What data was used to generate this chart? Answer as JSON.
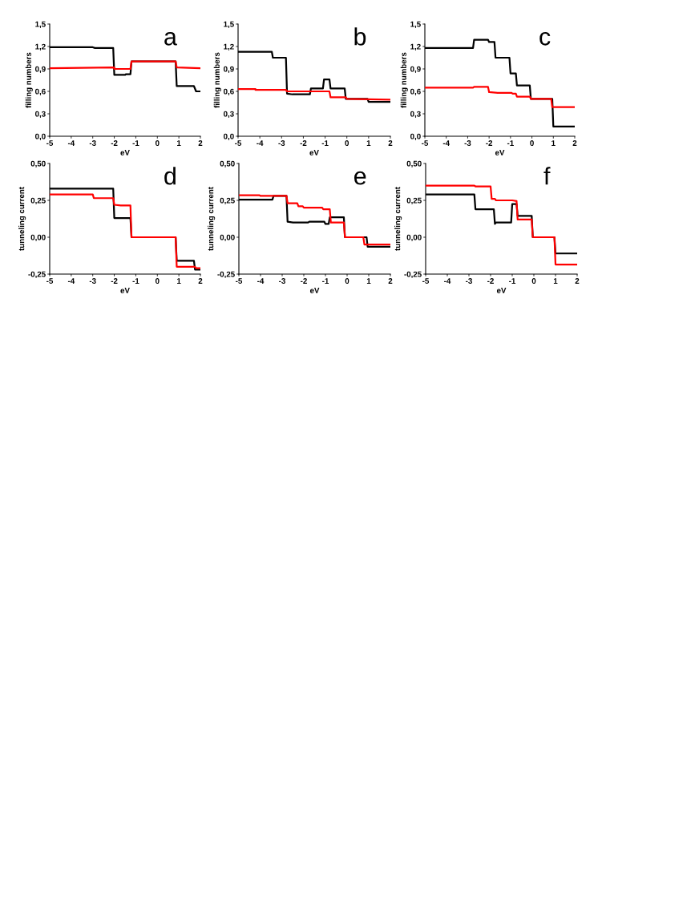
{
  "chart_data": [
    {
      "type": "line",
      "xlabel": "eV",
      "ylabel": "filling numbers",
      "annotations": [
        "a"
      ],
      "xlim": [
        -5,
        2
      ],
      "ylim": [
        0,
        1.5
      ],
      "xticks": [
        -5,
        -4,
        -3,
        -2,
        -1,
        0,
        1,
        2
      ],
      "yticks": [
        {
          "value": 0,
          "label": "0,0"
        },
        {
          "value": 0.3,
          "label": "0,3"
        },
        {
          "value": 0.6,
          "label": "0,6"
        },
        {
          "value": 0.9,
          "label": "0,9"
        },
        {
          "value": 1.2,
          "label": "1,2"
        },
        {
          "value": 1.5,
          "label": "1,5"
        }
      ],
      "series": [
        {
          "color": "#000000",
          "x": [
            -5,
            -3,
            -2.9,
            -2.05,
            -2.0,
            -1.5,
            -1.45,
            -1.25,
            -1.2,
            0.85,
            0.9,
            1.7,
            1.8,
            2
          ],
          "values": [
            1.19,
            1.19,
            1.18,
            1.18,
            0.82,
            0.82,
            0.83,
            0.83,
            1.0,
            1.0,
            0.67,
            0.67,
            0.6,
            0.6
          ]
        },
        {
          "color": "#ff0000",
          "x": [
            -5,
            -2,
            -2,
            -1.25,
            -1.2,
            0.85,
            0.9,
            2
          ],
          "values": [
            0.91,
            0.92,
            0.9,
            0.9,
            1.0,
            1.0,
            0.92,
            0.91
          ]
        }
      ]
    },
    {
      "type": "line",
      "xlabel": "eV",
      "ylabel": "filling numbers",
      "annotations": [
        "b"
      ],
      "xlim": [
        -5,
        2
      ],
      "ylim": [
        0,
        1.5
      ],
      "xticks": [
        -5,
        -4,
        -3,
        -2,
        -1,
        0,
        1,
        2
      ],
      "yticks": [
        {
          "value": 0,
          "label": "0,0"
        },
        {
          "value": 0.3,
          "label": "0,3"
        },
        {
          "value": 0.6,
          "label": "0,6"
        },
        {
          "value": 0.9,
          "label": "0,9"
        },
        {
          "value": 1.2,
          "label": "1,2"
        },
        {
          "value": 1.5,
          "label": "1,5"
        }
      ],
      "series": [
        {
          "color": "#000000",
          "x": [
            -5,
            -3.45,
            -3.4,
            -2.8,
            -2.75,
            -2.5,
            -1.7,
            -1.65,
            -1.1,
            -1.05,
            -0.8,
            -0.75,
            -0.1,
            -0.05,
            0.95,
            1.0,
            2
          ],
          "values": [
            1.13,
            1.13,
            1.05,
            1.05,
            0.57,
            0.56,
            0.56,
            0.64,
            0.64,
            0.76,
            0.76,
            0.64,
            0.64,
            0.5,
            0.5,
            0.46,
            0.46
          ]
        },
        {
          "color": "#ff0000",
          "x": [
            -5,
            -4.2,
            -4.2,
            -2.8,
            -2.75,
            -0.8,
            -0.75,
            -0.05,
            0,
            2
          ],
          "values": [
            0.63,
            0.63,
            0.62,
            0.62,
            0.6,
            0.6,
            0.52,
            0.52,
            0.5,
            0.49
          ]
        }
      ]
    },
    {
      "type": "line",
      "xlabel": "eV",
      "ylabel": "filling numbers",
      "annotations": [
        "c"
      ],
      "xlim": [
        -5,
        2
      ],
      "ylim": [
        0,
        1.5
      ],
      "xticks": [
        -5,
        -4,
        -3,
        -2,
        -1,
        0,
        1,
        2
      ],
      "yticks": [
        {
          "value": 0,
          "label": "0,0"
        },
        {
          "value": 0.3,
          "label": "0,3"
        },
        {
          "value": 0.6,
          "label": "0,6"
        },
        {
          "value": 0.9,
          "label": "0,9"
        },
        {
          "value": 1.2,
          "label": "1,2"
        },
        {
          "value": 1.5,
          "label": "1,5"
        }
      ],
      "series": [
        {
          "color": "#000000",
          "x": [
            -5,
            -2.75,
            -2.7,
            -2.05,
            -2.0,
            -1.75,
            -1.7,
            -1.05,
            -1.0,
            -0.75,
            -0.7,
            -0.1,
            -0.05,
            0.95,
            1.0,
            2
          ],
          "values": [
            1.18,
            1.18,
            1.29,
            1.29,
            1.26,
            1.26,
            1.05,
            1.05,
            0.84,
            0.84,
            0.68,
            0.68,
            0.5,
            0.5,
            0.13,
            0.13
          ]
        },
        {
          "color": "#ff0000",
          "x": [
            -5,
            -2.75,
            -2.7,
            -2.05,
            -2.0,
            -1.6,
            -0.95,
            -0.9,
            -0.75,
            -0.7,
            -0.1,
            -0.05,
            0.9,
            0.95,
            2
          ],
          "values": [
            0.65,
            0.65,
            0.66,
            0.66,
            0.59,
            0.58,
            0.58,
            0.57,
            0.57,
            0.53,
            0.53,
            0.5,
            0.5,
            0.39,
            0.39
          ]
        }
      ]
    },
    {
      "type": "line",
      "xlabel": "eV",
      "ylabel": "tunneling current",
      "annotations": [
        "d"
      ],
      "xlim": [
        -5,
        2
      ],
      "ylim": [
        -0.25,
        0.5
      ],
      "xticks": [
        -5,
        -4,
        -3,
        -2,
        -1,
        0,
        1,
        2
      ],
      "yticks": [
        {
          "value": -0.25,
          "label": "-0,25"
        },
        {
          "value": 0,
          "label": "0,00"
        },
        {
          "value": 0.25,
          "label": "0,25"
        },
        {
          "value": 0.5,
          "label": "0,50"
        }
      ],
      "series": [
        {
          "color": "#000000",
          "x": [
            -5,
            -2.05,
            -2.0,
            -1.25,
            -1.2,
            0.85,
            0.9,
            1.7,
            1.75,
            2
          ],
          "values": [
            0.33,
            0.33,
            0.13,
            0.13,
            0,
            0,
            -0.16,
            -0.16,
            -0.22,
            -0.22
          ]
        },
        {
          "color": "#ff0000",
          "x": [
            -5,
            -3.0,
            -2.95,
            -2.05,
            -2.0,
            -1.7,
            -1.25,
            -1.2,
            0.85,
            0.9,
            1.75,
            1.8,
            2
          ],
          "values": [
            0.29,
            0.29,
            0.265,
            0.265,
            0.22,
            0.215,
            0.215,
            0,
            0,
            -0.2,
            -0.2,
            -0.21,
            -0.21
          ]
        }
      ]
    },
    {
      "type": "line",
      "xlabel": "eV",
      "ylabel": "tunneling current",
      "annotations": [
        "e"
      ],
      "xlim": [
        -5,
        2
      ],
      "ylim": [
        -0.25,
        0.5
      ],
      "xticks": [
        -5,
        -4,
        -3,
        -2,
        -1,
        0,
        1,
        2
      ],
      "yticks": [
        {
          "value": -0.25,
          "label": "-0,25"
        },
        {
          "value": 0,
          "label": "0,00"
        },
        {
          "value": 0.25,
          "label": "0,25"
        },
        {
          "value": 0.5,
          "label": "0,50"
        }
      ],
      "series": [
        {
          "color": "#000000",
          "x": [
            -5,
            -3.45,
            -3.4,
            -2.8,
            -2.75,
            -2.5,
            -1.8,
            -1.75,
            -1.05,
            -1.0,
            -0.85,
            -0.8,
            -0.15,
            -0.1,
            0.9,
            0.95,
            2
          ],
          "values": [
            0.255,
            0.255,
            0.28,
            0.28,
            0.105,
            0.1,
            0.1,
            0.105,
            0.105,
            0.09,
            0.09,
            0.135,
            0.135,
            0,
            0,
            -0.065,
            -0.065
          ]
        },
        {
          "color": "#ff0000",
          "x": [
            -5,
            -4.05,
            -4.0,
            -2.8,
            -2.75,
            -2.3,
            -2.25,
            -2.05,
            -2.0,
            -1.15,
            -1.1,
            -0.8,
            -0.75,
            -0.15,
            -0.1,
            0.75,
            0.8,
            2
          ],
          "values": [
            0.285,
            0.285,
            0.28,
            0.28,
            0.23,
            0.23,
            0.21,
            0.21,
            0.2,
            0.2,
            0.19,
            0.19,
            0.1,
            0.1,
            0,
            0,
            -0.05,
            -0.05
          ]
        }
      ]
    },
    {
      "type": "line",
      "xlabel": "eV",
      "ylabel": "tunneling current",
      "annotations": [
        "f"
      ],
      "xlim": [
        -5,
        2
      ],
      "ylim": [
        -0.25,
        0.5
      ],
      "xticks": [
        -5,
        -4,
        -3,
        -2,
        -1,
        0,
        1,
        2
      ],
      "yticks": [
        {
          "value": -0.25,
          "label": "-0,25"
        },
        {
          "value": 0,
          "label": "0,00"
        },
        {
          "value": 0.25,
          "label": "0,25"
        },
        {
          "value": 0.5,
          "label": "0,50"
        }
      ],
      "series": [
        {
          "color": "#000000",
          "x": [
            -5,
            -2.75,
            -2.7,
            -1.85,
            -1.8,
            -1.75,
            -1.7,
            -1.05,
            -1.0,
            -0.8,
            -0.75,
            -0.1,
            -0.05,
            0.95,
            1.0,
            2
          ],
          "values": [
            0.29,
            0.29,
            0.19,
            0.19,
            0.09,
            0.1,
            0.1,
            0.1,
            0.225,
            0.225,
            0.145,
            0.145,
            0,
            0,
            -0.11,
            -0.11
          ]
        },
        {
          "color": "#ff0000",
          "x": [
            -5,
            -2.75,
            -2.7,
            -2.0,
            -1.95,
            -1.8,
            -1.75,
            -1.0,
            -0.8,
            -0.75,
            -0.1,
            -0.05,
            0.95,
            1.0,
            2
          ],
          "values": [
            0.35,
            0.35,
            0.345,
            0.345,
            0.26,
            0.26,
            0.25,
            0.25,
            0.245,
            0.12,
            0.12,
            0,
            0,
            -0.185,
            -0.185
          ]
        }
      ]
    }
  ]
}
